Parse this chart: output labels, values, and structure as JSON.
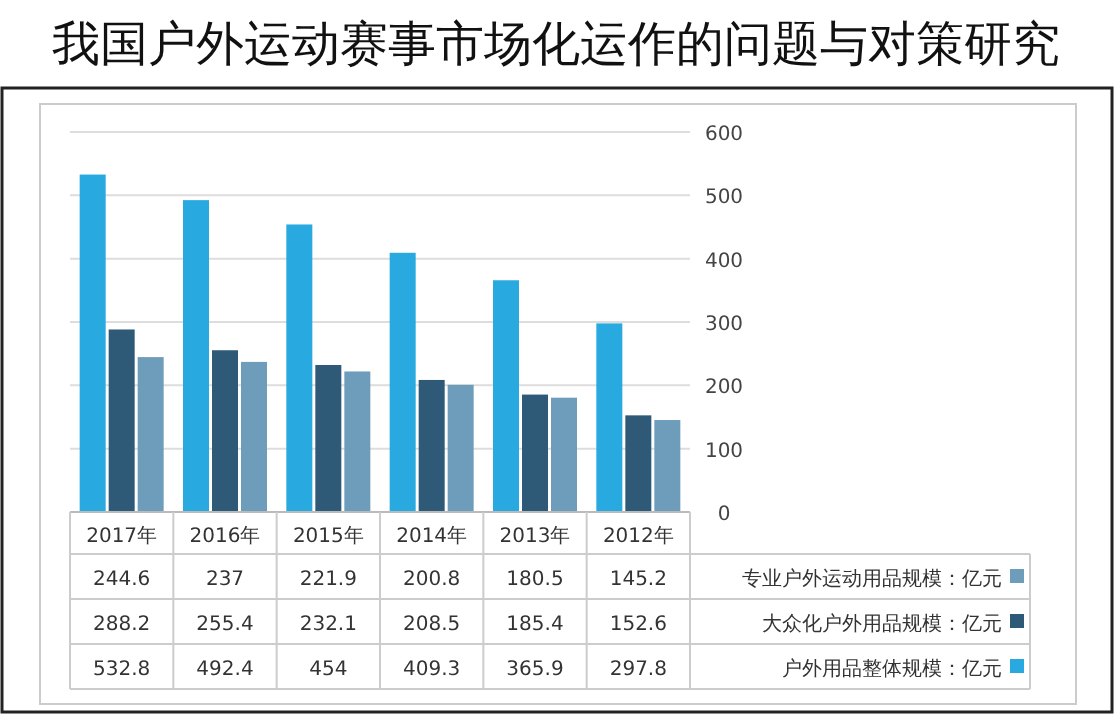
{
  "chart_data": {
    "type": "bar",
    "title": "我国户外运动赛事市场化运作的问题与对策研究",
    "categories": [
      "2017年",
      "2016年",
      "2015年",
      "2014年",
      "2013年",
      "2012年"
    ],
    "series": [
      {
        "name": "专业户外运动用品规模：亿元",
        "color": "#6d9dbb",
        "values": [
          244.6,
          237,
          221.9,
          200.8,
          180.5,
          145.2
        ]
      },
      {
        "name": "大众化户外用品规模：亿元",
        "color": "#2e5a78",
        "values": [
          288.2,
          255.4,
          232.1,
          208.5,
          185.4,
          152.6
        ]
      },
      {
        "name": "户外用品整体规模：亿元",
        "color": "#28a9df",
        "values": [
          532.8,
          492.4,
          454,
          409.3,
          365.9,
          297.8
        ]
      }
    ],
    "ylim": [
      0,
      600
    ],
    "yticks": [
      0,
      100,
      200,
      300,
      400,
      500,
      600
    ],
    "grid": "y",
    "legend": "bottom",
    "data_labels": true
  }
}
